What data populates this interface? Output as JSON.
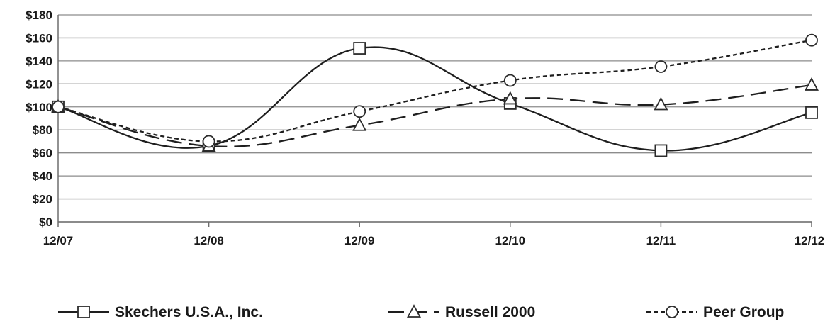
{
  "chart_data": {
    "type": "line",
    "categories": [
      "12/07",
      "12/08",
      "12/09",
      "12/10",
      "12/11",
      "12/12"
    ],
    "y_ticks": [
      "$0",
      "$20",
      "$40",
      "$60",
      "$80",
      "$100",
      "$120",
      "$140",
      "$160",
      "$180"
    ],
    "ylim": [
      0,
      180
    ],
    "grid": true,
    "legend_position": "bottom",
    "series": [
      {
        "name": "Skechers U.S.A., Inc.",
        "values": [
          100,
          66,
          151,
          103,
          62,
          95
        ],
        "marker": "square",
        "dash": "solid",
        "smooth": true
      },
      {
        "name": "Russell 2000",
        "values": [
          100,
          66,
          84,
          107,
          102,
          119
        ],
        "marker": "triangle",
        "dash": "long-dash",
        "smooth": true
      },
      {
        "name": "Peer Group",
        "values": [
          100,
          70,
          96,
          123,
          135,
          158
        ],
        "marker": "circle",
        "dash": "short-dash",
        "smooth": true
      }
    ]
  }
}
